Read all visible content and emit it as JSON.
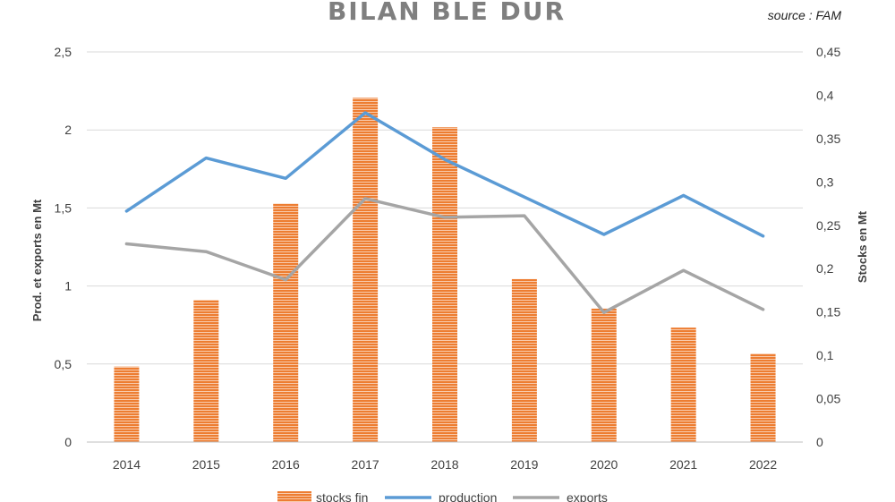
{
  "chart_data": {
    "type": "bar",
    "title": "BILAN BLE DUR",
    "source": "source : FAM",
    "categories": [
      "2014",
      "2015",
      "2016",
      "2017",
      "2018",
      "2019",
      "2020",
      "2021",
      "2022"
    ],
    "ylabel_left": "Prod. et exports en Mt",
    "ylabel_right": "Stocks en Mt",
    "ylim_left": [
      0,
      2.5
    ],
    "ylim_right": [
      0,
      0.45
    ],
    "yticks_left": [
      "0",
      "0,5",
      "1",
      "1,5",
      "2",
      "2,5"
    ],
    "yticks_right": [
      "0",
      "0,05",
      "0,1",
      "0,15",
      "0,2",
      "0,25",
      "0,3",
      "0,35",
      "0,4",
      "0,45"
    ],
    "grid": true,
    "legend_position": "bottom",
    "series": [
      {
        "name": "stocks fin",
        "type": "bar",
        "axis": "right",
        "color": "#ED7D31",
        "values": [
          0.087,
          0.164,
          0.275,
          0.397,
          0.363,
          0.188,
          0.154,
          0.132,
          0.102
        ]
      },
      {
        "name": "production",
        "type": "line",
        "axis": "left",
        "color": "#5B9BD5",
        "values": [
          1.48,
          1.82,
          1.69,
          2.11,
          1.81,
          1.57,
          1.33,
          1.58,
          1.32
        ]
      },
      {
        "name": "exports",
        "type": "line",
        "axis": "left",
        "color": "#A5A5A5",
        "values": [
          1.27,
          1.22,
          1.04,
          1.56,
          1.44,
          1.45,
          0.83,
          1.1,
          0.85
        ]
      }
    ]
  }
}
